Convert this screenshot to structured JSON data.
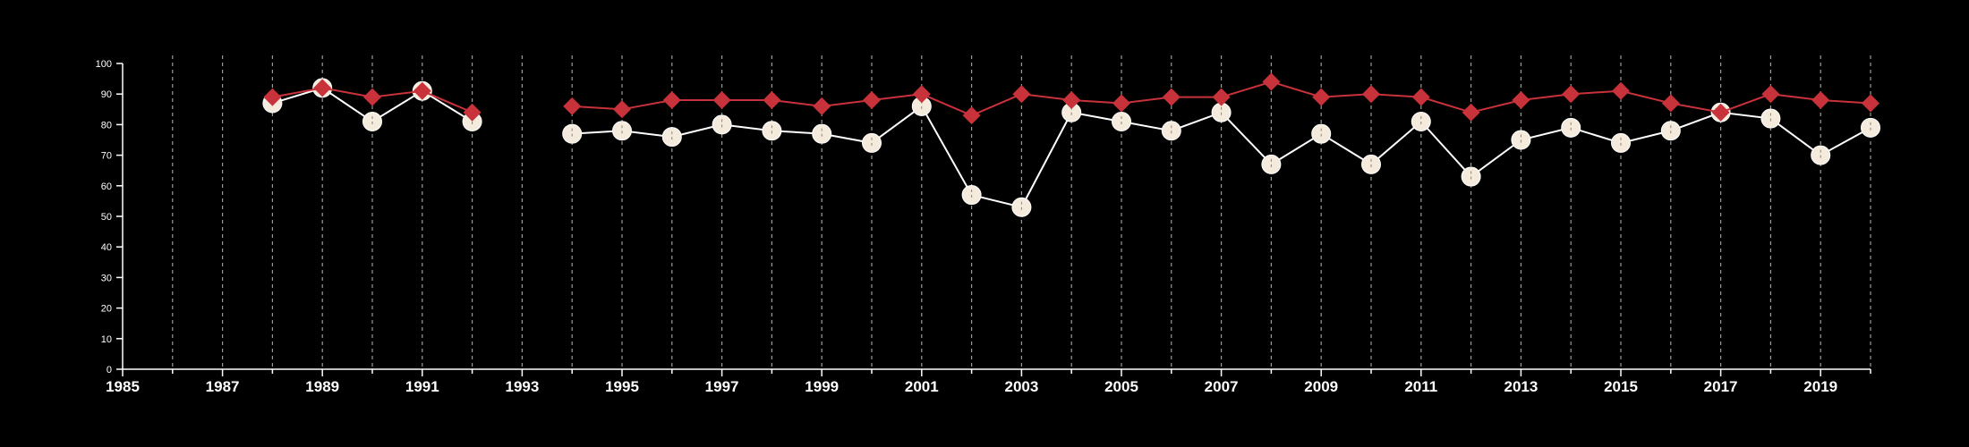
{
  "chart_data": {
    "type": "line",
    "title": "",
    "xlabel": "",
    "ylabel": "",
    "xlim": [
      1985,
      2020
    ],
    "ylim": [
      0,
      100
    ],
    "y_ticks": [
      0,
      10,
      20,
      30,
      40,
      50,
      60,
      70,
      80,
      90,
      100
    ],
    "x_ticks": [
      1985,
      1987,
      1989,
      1991,
      1993,
      1995,
      1997,
      1999,
      2001,
      2003,
      2005,
      2007,
      2009,
      2011,
      2013,
      2015,
      2017,
      2019
    ],
    "x_gridlines": [
      1986,
      1987,
      1988,
      1989,
      1990,
      1991,
      1992,
      1993,
      1994,
      1995,
      1996,
      1997,
      1998,
      1999,
      2000,
      2001,
      2002,
      2003,
      2004,
      2005,
      2006,
      2007,
      2008,
      2009,
      2010,
      2011,
      2012,
      2013,
      2014,
      2015,
      2016,
      2017,
      2018,
      2019,
      2020
    ],
    "grid": "vertical dashed",
    "series": [
      {
        "marker": "circle",
        "color": "#ffffff",
        "fill": "#f5ebdc",
        "segments": [
          {
            "x": [
              1988,
              1989,
              1990,
              1991,
              1992
            ],
            "y": [
              87,
              92,
              81,
              91,
              81
            ]
          },
          {
            "x": [
              1994,
              1995,
              1996,
              1997,
              1998,
              1999,
              2000,
              2001,
              2002,
              2003,
              2004,
              2005,
              2006,
              2007,
              2008,
              2009,
              2010,
              2011,
              2012,
              2013,
              2014,
              2015,
              2016,
              2017,
              2018,
              2019,
              2020
            ],
            "y": [
              77,
              78,
              76,
              80,
              78,
              77,
              74,
              86,
              57,
              53,
              84,
              81,
              78,
              84,
              67,
              77,
              67,
              81,
              63,
              75,
              79,
              74,
              78,
              84,
              82,
              70,
              79
            ]
          }
        ]
      },
      {
        "marker": "diamond",
        "color": "#c8323a",
        "fill": "#c8323a",
        "segments": [
          {
            "x": [
              1988,
              1989,
              1990,
              1991,
              1992
            ],
            "y": [
              89,
              92,
              89,
              91,
              84
            ]
          },
          {
            "x": [
              1994,
              1995,
              1996,
              1997,
              1998,
              1999,
              2000,
              2001,
              2002,
              2003,
              2004,
              2005,
              2006,
              2007,
              2008,
              2009,
              2010,
              2011,
              2012,
              2013,
              2014,
              2015,
              2016,
              2017,
              2018,
              2019,
              2020
            ],
            "y": [
              86,
              85,
              88,
              88,
              88,
              86,
              88,
              90,
              83,
              90,
              88,
              87,
              89,
              89,
              94,
              89,
              90,
              89,
              84,
              88,
              90,
              91,
              87,
              84,
              90,
              88,
              87
            ]
          }
        ]
      }
    ]
  }
}
